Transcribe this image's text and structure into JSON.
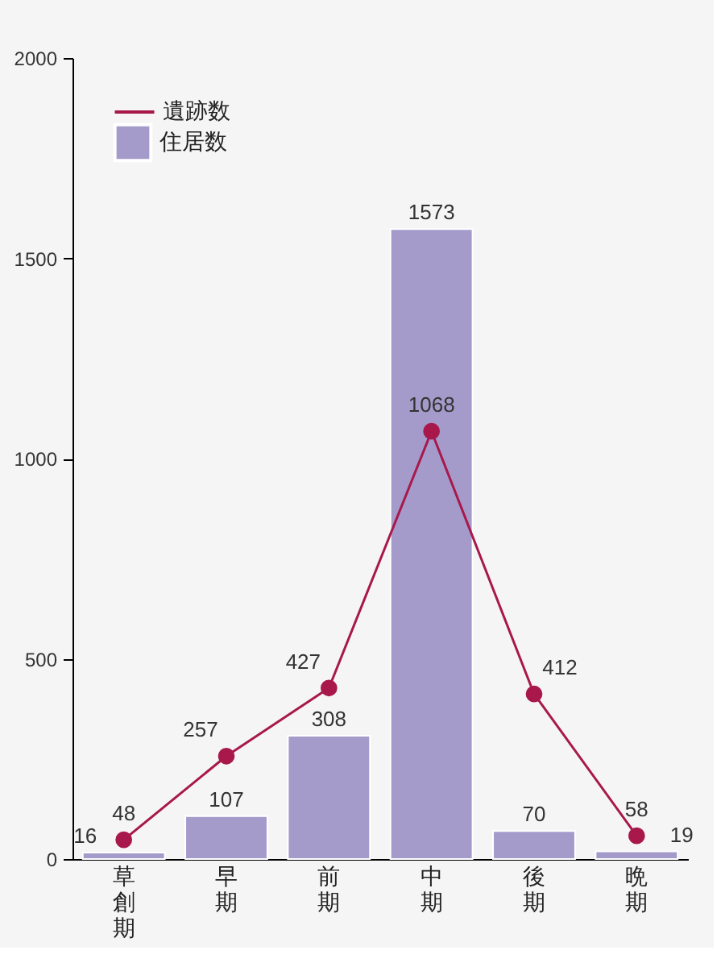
{
  "chart_data": {
    "type": "bar",
    "categories": [
      "草創期",
      "早期",
      "前期",
      "中期",
      "後期",
      "晩期"
    ],
    "series": [
      {
        "name": "遺跡数",
        "type": "line",
        "color": "#a8184b",
        "marker": "circle",
        "values": [
          48,
          257,
          427,
          1068,
          412,
          58
        ]
      },
      {
        "name": "住居数",
        "color": "#a59bcb",
        "values": [
          16,
          107,
          308,
          1573,
          70,
          19
        ]
      }
    ],
    "ylim": [
      0,
      2000
    ],
    "yticks": [
      0,
      500,
      1000,
      1500,
      2000
    ],
    "data_labels": true,
    "grid": false,
    "legend": "top left"
  }
}
